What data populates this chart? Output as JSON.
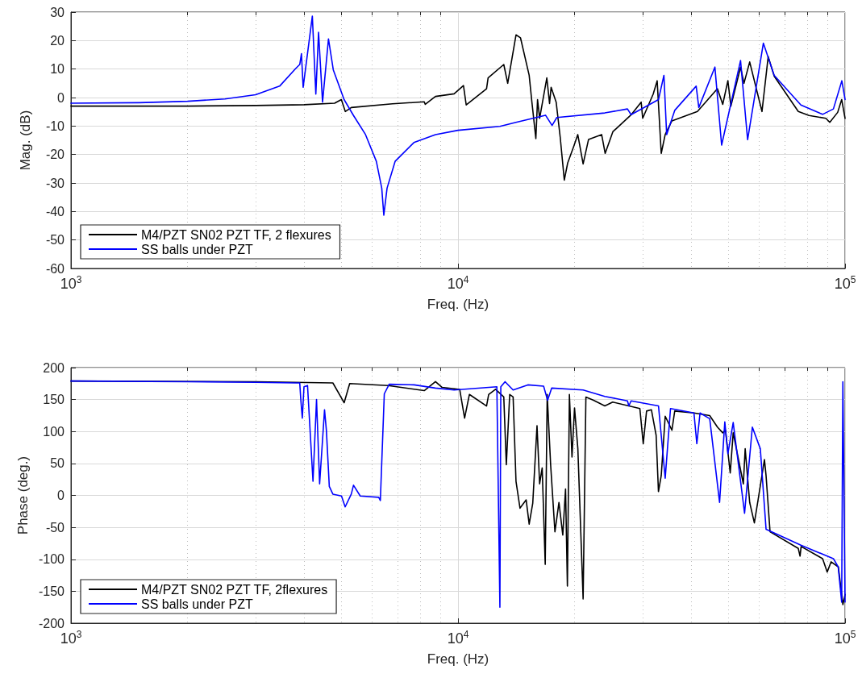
{
  "chart_data": [
    {
      "type": "line",
      "xlabel": "Freq. (Hz)",
      "ylabel": "Mag. (dB)",
      "log": "x",
      "grid": true,
      "legend": "bottom left",
      "marker": "none",
      "line_style": "solid",
      "xlim": [
        1000,
        100000
      ],
      "xticks": [
        {
          "value": 1000,
          "label": "10$^{3}$"
        },
        {
          "value": 2000,
          "label": null
        },
        {
          "value": 3000,
          "label": null
        },
        {
          "value": 4000,
          "label": null
        },
        {
          "value": 5000,
          "label": null
        },
        {
          "value": 6000,
          "label": null
        },
        {
          "value": 7000,
          "label": null
        },
        {
          "value": 8000,
          "label": null
        },
        {
          "value": 9000,
          "label": null
        },
        {
          "value": 10000,
          "label": "10$^{4}$"
        },
        {
          "value": 20000,
          "label": null
        },
        {
          "value": 30000,
          "label": null
        },
        {
          "value": 40000,
          "label": null
        },
        {
          "value": 50000,
          "label": null
        },
        {
          "value": 60000,
          "label": null
        },
        {
          "value": 70000,
          "label": null
        },
        {
          "value": 80000,
          "label": null
        },
        {
          "value": 90000,
          "label": null
        },
        {
          "value": 100000,
          "label": "10$^{5}$"
        }
      ],
      "ylim": [
        -60,
        30
      ],
      "yticks": [
        -60,
        -50,
        -40,
        -30,
        -20,
        -10,
        0,
        10,
        20,
        30
      ],
      "series": [
        {
          "name": "M4/PZT SN02 PZT TF, 2 flexures",
          "color": "#000000",
          "x": [
            1000,
            2000,
            3000,
            4000,
            4800,
            4996,
            5114,
            5300,
            6770,
            8180,
            8230,
            8745,
            9770,
            10330,
            10500,
            11850,
            11960,
            13130,
            13440,
            14120,
            14500,
            15270,
            15520,
            15890,
            16050,
            16250,
            16960,
            17240,
            17400,
            17930,
            18370,
            18820,
            19200,
            19900,
            20390,
            21050,
            21740,
            23500,
            24000,
            25120,
            28080,
            29730,
            30000,
            31930,
            32700,
            33500,
            34300,
            35690,
            41560,
            46800,
            48300,
            49800,
            50700,
            53700,
            54800,
            56700,
            61000,
            63300,
            65600,
            75700,
            80700,
            89200,
            91300,
            95700,
            98000,
            100000
          ],
          "values": [
            -3,
            -3,
            -2.8,
            -2.5,
            -2,
            -0.7,
            -4.9,
            -3.5,
            -2.2,
            -1.5,
            -2.4,
            0.4,
            1.3,
            4.2,
            -2.6,
            3.1,
            6.9,
            11.6,
            5,
            22,
            21,
            7.8,
            -1.6,
            -14.4,
            -0.7,
            -7.3,
            6.9,
            -2.1,
            3.6,
            -1.6,
            -14,
            -29,
            -23,
            -17.2,
            -13,
            -23.3,
            -14.7,
            -13,
            -19.6,
            -12,
            -5.9,
            -1.6,
            -7.3,
            1.2,
            5.9,
            -19.6,
            -13,
            -8.2,
            -4.9,
            3.1,
            -2.4,
            5.9,
            -3,
            10.7,
            5,
            12.5,
            -4.9,
            14.4,
            7.5,
            -4.9,
            -6.3,
            -7.3,
            -8.7,
            -5.2,
            -0.7,
            -7.3
          ]
        },
        {
          "name": "SS balls under PZT",
          "color": "#0000ff",
          "x": [
            1000,
            1500,
            2000,
            2500,
            3000,
            3460,
            3807,
            3900,
            3940,
            3980,
            4204,
            4292,
            4362,
            4467,
            4627,
            4762,
            5078,
            5370,
            5768,
            6152,
            6353,
            6431,
            6557,
            6878,
            7692,
            8745,
            10000,
            12830,
            14120,
            16830,
            17500,
            18000,
            23950,
            27400,
            28000,
            32960,
            34040,
            34600,
            36300,
            41240,
            41890,
            46100,
            47980,
            53700,
            56000,
            61500,
            65600,
            76900,
            87500,
            93300,
            98100,
            100000
          ],
          "values": [
            -2,
            -1.8,
            -1.3,
            -0.5,
            1,
            4,
            10.2,
            11.6,
            15.4,
            3.6,
            28.6,
            1.2,
            22.9,
            -1.6,
            20.6,
            9.7,
            -0.7,
            -6.3,
            -13,
            -22.4,
            -31.8,
            -41.3,
            -31.8,
            -22.4,
            -15.8,
            -13,
            -11.5,
            -10.1,
            -8.7,
            -6.2,
            -9.8,
            -7,
            -5.4,
            -4,
            -6,
            -0.7,
            7.8,
            -13,
            -4.5,
            4,
            -3.5,
            10.7,
            -16.7,
            13,
            -14.8,
            19.1,
            7.8,
            -2.6,
            -5.9,
            -4,
            5.9,
            -0.7
          ]
        }
      ]
    },
    {
      "type": "line",
      "xlabel": "Freq. (Hz)",
      "ylabel": "Phase (deg.)",
      "log": "x",
      "grid": true,
      "legend": "bottom left",
      "marker": "none",
      "line_style": "solid",
      "xlim": [
        1000,
        100000
      ],
      "xticks": [
        {
          "value": 1000,
          "label": "10$^{3}$"
        },
        {
          "value": 2000,
          "label": null
        },
        {
          "value": 3000,
          "label": null
        },
        {
          "value": 4000,
          "label": null
        },
        {
          "value": 5000,
          "label": null
        },
        {
          "value": 6000,
          "label": null
        },
        {
          "value": 7000,
          "label": null
        },
        {
          "value": 8000,
          "label": null
        },
        {
          "value": 9000,
          "label": null
        },
        {
          "value": 10000,
          "label": "10$^{4}$"
        },
        {
          "value": 20000,
          "label": null
        },
        {
          "value": 30000,
          "label": null
        },
        {
          "value": 40000,
          "label": null
        },
        {
          "value": 50000,
          "label": null
        },
        {
          "value": 60000,
          "label": null
        },
        {
          "value": 70000,
          "label": null
        },
        {
          "value": 80000,
          "label": null
        },
        {
          "value": 90000,
          "label": null
        },
        {
          "value": 100000,
          "label": "10$^{5}$"
        }
      ],
      "ylim": [
        -200,
        200
      ],
      "yticks": [
        -200,
        -150,
        -100,
        -50,
        0,
        50,
        100,
        150,
        200
      ],
      "series": [
        {
          "name": "M4/PZT SN02 PZT TF, 2flexures",
          "color": "#000000",
          "x": [
            1000,
            3000,
            4750,
            5080,
            5250,
            6600,
            8180,
            8745,
            9100,
            10100,
            10400,
            10700,
            11850,
            12000,
            12500,
            13130,
            13330,
            13600,
            13880,
            14120,
            14460,
            15000,
            15270,
            15600,
            16000,
            16250,
            16500,
            16800,
            17000,
            17350,
            17800,
            18230,
            18650,
            18960,
            19170,
            19400,
            19700,
            20000,
            20400,
            21050,
            21400,
            22400,
            23950,
            25100,
            29500,
            30100,
            30700,
            31600,
            32500,
            32950,
            33500,
            34300,
            35700,
            36300,
            40700,
            44700,
            46800,
            48300,
            49100,
            50500,
            51400,
            54600,
            55200,
            56700,
            58300,
            59600,
            61900,
            62500,
            64000,
            75700,
            76500,
            77000,
            87500,
            89900,
            92000,
            96100,
            98700,
            100000
          ],
          "values": [
            179,
            178,
            176,
            145,
            175,
            172,
            164,
            178,
            169,
            166,
            121,
            158,
            140,
            158,
            166,
            154,
            48,
            158,
            154,
            22,
            -20,
            -7,
            -45,
            -12,
            109,
            18,
            43,
            -108,
            158,
            48,
            -57,
            -11,
            -62,
            10,
            -142,
            158,
            60,
            137,
            73,
            -162,
            154,
            149,
            140,
            146,
            136,
            81,
            132,
            134,
            94,
            6,
            31,
            124,
            102,
            132,
            129,
            125,
            107,
            98,
            102,
            35,
            98,
            18,
            73,
            -11,
            -43,
            -7,
            56,
            31,
            -57,
            -83,
            -95,
            -80,
            -99,
            -120,
            -104,
            -112,
            -171,
            -155
          ]
        },
        {
          "name": "SS balls under PZT",
          "color": "#0000ff",
          "x": [
            1000,
            2000,
            3000,
            3800,
            3900,
            3925,
            3960,
            4000,
            4085,
            4220,
            4310,
            4390,
            4520,
            4570,
            4650,
            4750,
            5000,
            5110,
            5300,
            5370,
            5590,
            6240,
            6300,
            6450,
            6640,
            7700,
            8745,
            9770,
            12600,
            12830,
            12900,
            13230,
            13880,
            15150,
            16640,
            17040,
            17460,
            21050,
            23950,
            27400,
            27630,
            28000,
            32960,
            34300,
            35400,
            40700,
            41400,
            42200,
            44700,
            47400,
            48900,
            49800,
            51400,
            55000,
            57600,
            60400,
            62500,
            76900,
            93300,
            96000,
            98000,
            98700,
            100000
          ],
          "values": [
            179,
            178,
            177,
            176,
            176,
            150,
            121,
            170,
            172,
            22,
            150,
            18,
            134,
            102,
            14,
            2,
            -1,
            -18,
            2,
            16,
            -1,
            -3,
            -8,
            159,
            174,
            173,
            168,
            165,
            170,
            -175,
            170,
            178,
            165,
            173,
            171,
            149,
            168,
            165,
            155,
            148,
            140,
            148,
            140,
            27,
            136,
            129,
            81,
            129,
            120,
            -11,
            115,
            65,
            114,
            -28,
            107,
            73,
            -53,
            -78,
            -99,
            -112,
            -167,
            178,
            -167
          ]
        }
      ]
    }
  ]
}
